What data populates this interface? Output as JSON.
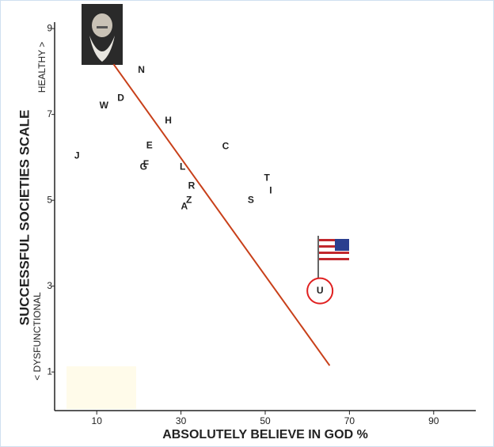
{
  "chart_data": {
    "type": "scatter",
    "x_label": "ABSOLUTELY BELIEVE IN GOD %",
    "y_label": "SUCCESSFUL SOCIETIES SCALE",
    "y_top_label": "HEALTHY >",
    "y_bottom_label": "< DYSFUNCTIONAL",
    "labels": [
      "N",
      "D",
      "W",
      "H",
      "E",
      "C",
      "J",
      "G",
      "F",
      "L",
      "T",
      "I",
      "R",
      "Z",
      "A",
      "S",
      "U"
    ],
    "x": [
      20.6,
      15.7,
      11.7,
      27,
      22.5,
      40.6,
      5.3,
      21.1,
      21.7,
      30.4,
      50.4,
      51.3,
      32.5,
      31.9,
      30.8,
      46.6,
      63
    ],
    "y": [
      8.03,
      7.37,
      7.2,
      6.85,
      6.27,
      6.25,
      6.03,
      5.77,
      5.84,
      5.77,
      5.51,
      5.22,
      5.33,
      5.0,
      4.85,
      5.0,
      2.89
    ],
    "highlight_color": "#e02020",
    "trend_line": {
      "x": [
        14,
        65.3
      ],
      "y": [
        8.17,
        1.15
      ],
      "color": "#c8401a"
    },
    "xlim": [
      0,
      100
    ],
    "ylim": [
      0.1,
      9.15
    ],
    "xticks": [
      10,
      30,
      50,
      70,
      90
    ],
    "yticks": [
      1,
      3,
      5,
      7,
      9
    ]
  }
}
